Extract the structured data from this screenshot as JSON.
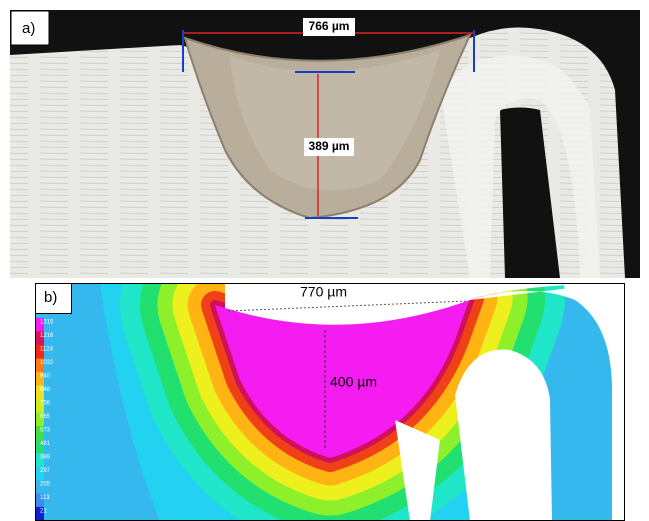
{
  "panel_a": {
    "label": "a)",
    "width_label": "766 µm",
    "depth_label": "389 µm"
  },
  "panel_b": {
    "label": "b)",
    "width_label": "770 µm",
    "depth_label": "400 µm",
    "legend": [
      "1315",
      "1216",
      "1124",
      "1032",
      "940",
      "848",
      "756",
      "665",
      "573",
      "481",
      "389",
      "297",
      "205",
      "113",
      "21"
    ]
  }
}
